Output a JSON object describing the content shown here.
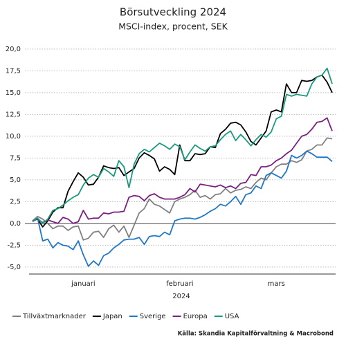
{
  "chart_data": {
    "type": "line",
    "title": "Börsutveckling 2024",
    "subtitle": "MSCI-index, procent, SEK",
    "x_label": "2024",
    "source": "Källa: Skandia Kapitalförvaltning & Macrobond",
    "categories": [
      null,
      null,
      null,
      null,
      null,
      null,
      null,
      null,
      null,
      null,
      "januari",
      null,
      null,
      null,
      null,
      null,
      null,
      null,
      null,
      null,
      null,
      null,
      null,
      null,
      null,
      null,
      null,
      null,
      null,
      "februari",
      null,
      null,
      null,
      null,
      null,
      null,
      null,
      null,
      null,
      null,
      null,
      null,
      null,
      null,
      null,
      null,
      null,
      null,
      "mars",
      null,
      null,
      null,
      null,
      null,
      null,
      null,
      null,
      null,
      null,
      null
    ],
    "ylim": [
      -5.8,
      20.7
    ],
    "yticks": [
      {
        "value": -5,
        "label": "-5,0"
      },
      {
        "value": -2.5,
        "label": "-2,5"
      },
      {
        "value": 0,
        "label": "0,0"
      },
      {
        "value": 2.5,
        "label": "2,5"
      },
      {
        "value": 5,
        "label": "5,0"
      },
      {
        "value": 7.5,
        "label": "7,5"
      },
      {
        "value": 10,
        "label": "10,0"
      },
      {
        "value": 12.5,
        "label": "12,5"
      },
      {
        "value": 15,
        "label": "15,0"
      },
      {
        "value": 17.5,
        "label": "17,5"
      },
      {
        "value": 20,
        "label": "20,0"
      }
    ],
    "grid": true,
    "series": [
      {
        "name": "Tillväxtmarknader",
        "color": "#808080",
        "values": [
          0.3,
          0.8,
          0.5,
          0.0,
          -0.6,
          -0.3,
          -0.3,
          -0.8,
          -0.4,
          -0.3,
          -1.9,
          -1.7,
          -1.0,
          -0.9,
          -1.6,
          -0.6,
          -0.2,
          -1.0,
          -0.3,
          -1.6,
          -0.2,
          1.2,
          1.7,
          2.8,
          2.2,
          2.0,
          1.6,
          1.2,
          2.5,
          2.8,
          3.0,
          3.3,
          3.8,
          3.0,
          3.2,
          2.8,
          3.3,
          3.4,
          4.0,
          3.5,
          3.8,
          3.9,
          4.2,
          4.0,
          4.7,
          5.2,
          5.0,
          5.8,
          6.5,
          6.8,
          6.8,
          7.2,
          7.0,
          7.3,
          8.3,
          8.5,
          9.0,
          9.0,
          9.8,
          9.7
        ]
      },
      {
        "name": "Japan",
        "color": "#000000",
        "values": [
          0.3,
          0.5,
          -0.4,
          0.3,
          1.3,
          1.8,
          1.8,
          3.7,
          4.8,
          5.8,
          5.3,
          4.4,
          4.5,
          5.3,
          6.6,
          6.4,
          6.3,
          6.4,
          5.5,
          5.9,
          6.3,
          7.5,
          8.1,
          7.8,
          7.4,
          6.0,
          6.5,
          6.2,
          5.6,
          9.0,
          7.2,
          7.2,
          8.0,
          7.9,
          8.0,
          8.8,
          8.7,
          10.3,
          10.8,
          11.5,
          11.6,
          11.3,
          10.5,
          9.4,
          9.0,
          9.8,
          10.6,
          12.8,
          13.0,
          12.8,
          16.0,
          15.0,
          15.0,
          16.4,
          16.3,
          16.4,
          16.8,
          17.0,
          16.2,
          15.0
        ]
      },
      {
        "name": "Sverige",
        "color": "#1f77c8",
        "values": [
          0.2,
          0.6,
          -2.0,
          -1.8,
          -2.8,
          -2.2,
          -2.5,
          -2.6,
          -3.0,
          -2.0,
          -3.6,
          -4.9,
          -4.3,
          -4.8,
          -3.7,
          -3.4,
          -2.8,
          -2.4,
          -1.9,
          -1.8,
          -1.8,
          -1.6,
          -2.4,
          -1.5,
          -1.4,
          -1.5,
          -1.0,
          -1.3,
          0.3,
          0.5,
          0.6,
          0.6,
          0.5,
          0.7,
          1.0,
          1.4,
          1.7,
          2.2,
          2.0,
          2.5,
          3.1,
          2.2,
          3.3,
          3.5,
          4.3,
          4.0,
          5.5,
          5.8,
          5.5,
          5.2,
          6.0,
          7.8,
          7.5,
          7.8,
          8.3,
          8.0,
          7.6,
          7.6,
          7.6,
          7.1
        ]
      },
      {
        "name": "Europa",
        "color": "#7b1f82",
        "values": [
          0.3,
          0.5,
          0.1,
          0.4,
          0.2,
          0.0,
          0.7,
          0.5,
          0.0,
          0.2,
          1.5,
          0.5,
          0.6,
          0.6,
          1.2,
          1.1,
          1.3,
          1.3,
          1.4,
          3.0,
          3.2,
          3.1,
          2.6,
          3.2,
          3.4,
          3.0,
          2.8,
          2.8,
          2.8,
          3.0,
          3.3,
          4.0,
          3.6,
          4.5,
          4.4,
          4.3,
          4.2,
          4.4,
          4.1,
          4.3,
          4.0,
          4.6,
          4.7,
          5.6,
          5.5,
          6.5,
          6.5,
          6.7,
          7.2,
          7.5,
          8.0,
          8.4,
          9.2,
          10.0,
          10.2,
          10.8,
          11.6,
          11.7,
          12.1,
          10.6
        ]
      },
      {
        "name": "USA",
        "color": "#1a9a7e",
        "values": [
          0.3,
          0.6,
          0.0,
          0.5,
          1.5,
          1.7,
          2.1,
          2.6,
          3.0,
          3.3,
          4.4,
          5.2,
          5.6,
          5.3,
          6.3,
          5.9,
          5.4,
          7.2,
          6.5,
          4.1,
          6.8,
          8.0,
          8.5,
          8.2,
          8.7,
          9.2,
          8.9,
          8.5,
          9.1,
          8.8,
          7.3,
          8.2,
          9.0,
          8.6,
          8.3,
          8.8,
          8.9,
          9.6,
          10.2,
          10.6,
          9.5,
          10.2,
          9.6,
          8.9,
          9.6,
          10.2,
          9.9,
          10.5,
          12.0,
          12.3,
          14.8,
          14.6,
          14.8,
          14.7,
          14.6,
          16.0,
          16.8,
          17.0,
          17.8,
          16.0
        ]
      }
    ]
  }
}
